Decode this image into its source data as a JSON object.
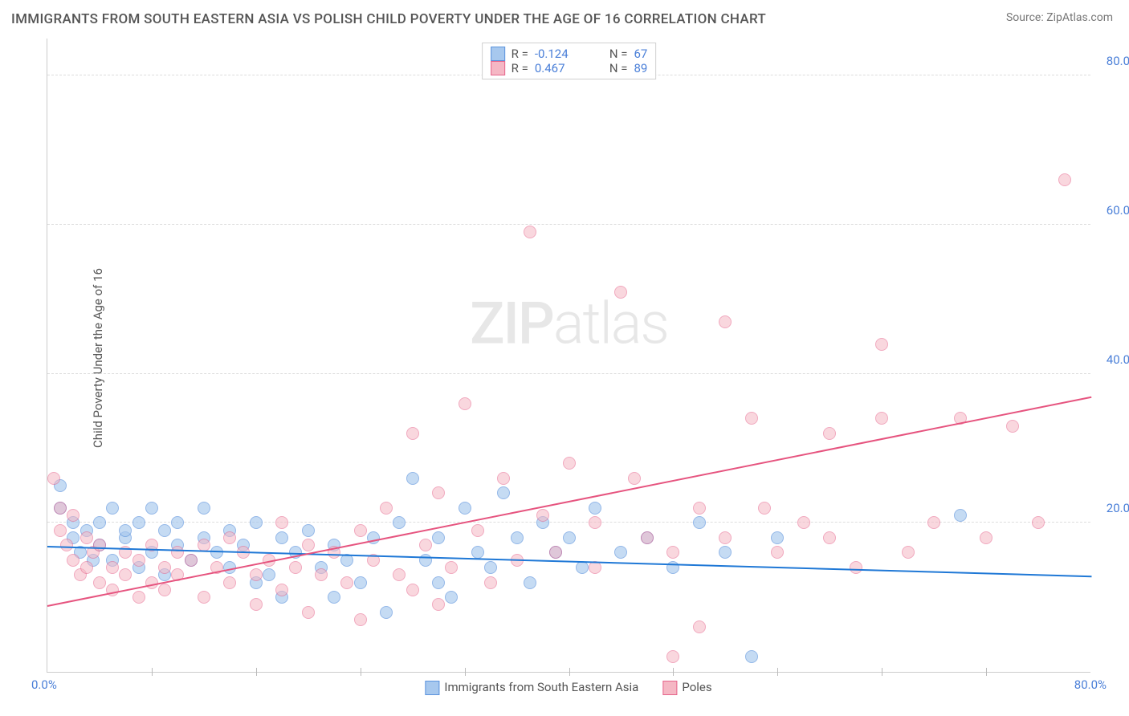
{
  "title": "IMMIGRANTS FROM SOUTH EASTERN ASIA VS POLISH CHILD POVERTY UNDER THE AGE OF 16 CORRELATION CHART",
  "source": "Source: ZipAtlas.com",
  "ylabel": "Child Poverty Under the Age of 16",
  "watermark": {
    "prefix": "ZIP",
    "suffix": "atlas"
  },
  "chart": {
    "type": "scatter",
    "xlim": [
      0,
      80
    ],
    "ylim": [
      0,
      85
    ],
    "yticks": [
      20,
      40,
      60,
      80
    ],
    "xtick_labels": {
      "min": "0.0%",
      "max": "80.0%"
    },
    "xminor_step": 8,
    "marker_radius": 8,
    "background_color": "#ffffff",
    "grid_color": "#dddddd",
    "axis_color": "#cccccc",
    "tick_color": "#4a7fd8",
    "series": [
      {
        "name": "Immigrants from South Eastern Asia",
        "fill": "#a7c8ee",
        "stroke": "#5b93dd",
        "opacity": 0.65,
        "R": "-0.124",
        "N": "67",
        "trend": {
          "y_at_x0": 17,
          "y_at_xmax": 13,
          "color": "#1f78d6",
          "width": 2
        },
        "points": [
          [
            1,
            25
          ],
          [
            1,
            22
          ],
          [
            2,
            20
          ],
          [
            2,
            18
          ],
          [
            2.5,
            16
          ],
          [
            3,
            19
          ],
          [
            3.5,
            15
          ],
          [
            4,
            20
          ],
          [
            4,
            17
          ],
          [
            5,
            22
          ],
          [
            5,
            15
          ],
          [
            6,
            18
          ],
          [
            6,
            19
          ],
          [
            7,
            20
          ],
          [
            7,
            14
          ],
          [
            8,
            22
          ],
          [
            8,
            16
          ],
          [
            9,
            19
          ],
          [
            9,
            13
          ],
          [
            10,
            17
          ],
          [
            10,
            20
          ],
          [
            11,
            15
          ],
          [
            12,
            18
          ],
          [
            12,
            22
          ],
          [
            13,
            16
          ],
          [
            14,
            19
          ],
          [
            14,
            14
          ],
          [
            15,
            17
          ],
          [
            16,
            20
          ],
          [
            16,
            12
          ],
          [
            17,
            13
          ],
          [
            18,
            18
          ],
          [
            18,
            10
          ],
          [
            19,
            16
          ],
          [
            20,
            19
          ],
          [
            21,
            14
          ],
          [
            22,
            17
          ],
          [
            22,
            10
          ],
          [
            23,
            15
          ],
          [
            24,
            12
          ],
          [
            25,
            18
          ],
          [
            26,
            8
          ],
          [
            27,
            20
          ],
          [
            28,
            26
          ],
          [
            29,
            15
          ],
          [
            30,
            12
          ],
          [
            30,
            18
          ],
          [
            31,
            10
          ],
          [
            32,
            22
          ],
          [
            33,
            16
          ],
          [
            34,
            14
          ],
          [
            35,
            24
          ],
          [
            36,
            18
          ],
          [
            37,
            12
          ],
          [
            38,
            20
          ],
          [
            39,
            16
          ],
          [
            40,
            18
          ],
          [
            41,
            14
          ],
          [
            42,
            22
          ],
          [
            44,
            16
          ],
          [
            46,
            18
          ],
          [
            48,
            14
          ],
          [
            50,
            20
          ],
          [
            52,
            16
          ],
          [
            54,
            2
          ],
          [
            56,
            18
          ],
          [
            70,
            21
          ]
        ]
      },
      {
        "name": "Poles",
        "fill": "#f5b7c4",
        "stroke": "#e6648b",
        "opacity": 0.55,
        "R": "0.467",
        "N": "89",
        "trend": {
          "y_at_x0": 9,
          "y_at_xmax": 37,
          "color": "#e6547f",
          "width": 2
        },
        "points": [
          [
            0.5,
            26
          ],
          [
            1,
            22
          ],
          [
            1,
            19
          ],
          [
            1.5,
            17
          ],
          [
            2,
            15
          ],
          [
            2,
            21
          ],
          [
            2.5,
            13
          ],
          [
            3,
            18
          ],
          [
            3,
            14
          ],
          [
            3.5,
            16
          ],
          [
            4,
            12
          ],
          [
            4,
            17
          ],
          [
            5,
            14
          ],
          [
            5,
            11
          ],
          [
            6,
            16
          ],
          [
            6,
            13
          ],
          [
            7,
            15
          ],
          [
            7,
            10
          ],
          [
            8,
            12
          ],
          [
            8,
            17
          ],
          [
            9,
            14
          ],
          [
            9,
            11
          ],
          [
            10,
            16
          ],
          [
            10,
            13
          ],
          [
            11,
            15
          ],
          [
            12,
            10
          ],
          [
            12,
            17
          ],
          [
            13,
            14
          ],
          [
            14,
            12
          ],
          [
            14,
            18
          ],
          [
            15,
            16
          ],
          [
            16,
            13
          ],
          [
            16,
            9
          ],
          [
            17,
            15
          ],
          [
            18,
            11
          ],
          [
            18,
            20
          ],
          [
            19,
            14
          ],
          [
            20,
            17
          ],
          [
            20,
            8
          ],
          [
            21,
            13
          ],
          [
            22,
            16
          ],
          [
            23,
            12
          ],
          [
            24,
            19
          ],
          [
            24,
            7
          ],
          [
            25,
            15
          ],
          [
            26,
            22
          ],
          [
            27,
            13
          ],
          [
            28,
            11
          ],
          [
            28,
            32
          ],
          [
            29,
            17
          ],
          [
            30,
            9
          ],
          [
            30,
            24
          ],
          [
            31,
            14
          ],
          [
            32,
            36
          ],
          [
            33,
            19
          ],
          [
            34,
            12
          ],
          [
            35,
            26
          ],
          [
            36,
            15
          ],
          [
            37,
            59
          ],
          [
            38,
            21
          ],
          [
            39,
            16
          ],
          [
            40,
            28
          ],
          [
            42,
            14
          ],
          [
            42,
            20
          ],
          [
            44,
            51
          ],
          [
            45,
            26
          ],
          [
            46,
            18
          ],
          [
            48,
            16
          ],
          [
            48,
            2
          ],
          [
            50,
            22
          ],
          [
            50,
            6
          ],
          [
            52,
            18
          ],
          [
            52,
            47
          ],
          [
            54,
            34
          ],
          [
            55,
            22
          ],
          [
            56,
            16
          ],
          [
            58,
            20
          ],
          [
            60,
            32
          ],
          [
            60,
            18
          ],
          [
            62,
            14
          ],
          [
            64,
            44
          ],
          [
            64,
            34
          ],
          [
            66,
            16
          ],
          [
            68,
            20
          ],
          [
            70,
            34
          ],
          [
            72,
            18
          ],
          [
            74,
            33
          ],
          [
            76,
            20
          ],
          [
            78,
            66
          ]
        ]
      }
    ]
  },
  "bottom_legend": [
    {
      "label": "Immigrants from South Eastern Asia",
      "fill": "#a7c8ee",
      "stroke": "#5b93dd"
    },
    {
      "label": "Poles",
      "fill": "#f5b7c4",
      "stroke": "#e6648b"
    }
  ]
}
